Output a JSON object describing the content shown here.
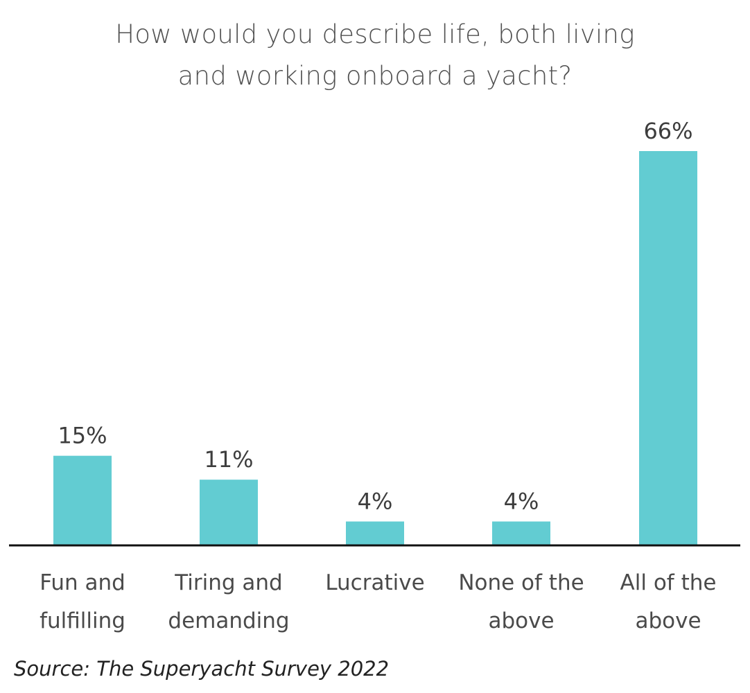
{
  "chart_data": {
    "type": "bar",
    "title_lines": [
      "How would you describe life, both living",
      "and working onboard a yacht?"
    ],
    "categories": [
      [
        "Fun and",
        "fulfilling"
      ],
      [
        "Tiring and",
        "demanding"
      ],
      [
        "Lucrative"
      ],
      [
        "None of the",
        "above"
      ],
      [
        "All of the",
        "above"
      ]
    ],
    "values": [
      15,
      11,
      4,
      4,
      66
    ],
    "value_labels": [
      "15%",
      "11%",
      "4%",
      "4%",
      "66%"
    ],
    "ylim": [
      0,
      70
    ],
    "grid": false,
    "legend": "none",
    "bar_color": "#62ccd2",
    "axis_color": "#111111"
  },
  "source": "Source: The Superyacht Survey 2022"
}
